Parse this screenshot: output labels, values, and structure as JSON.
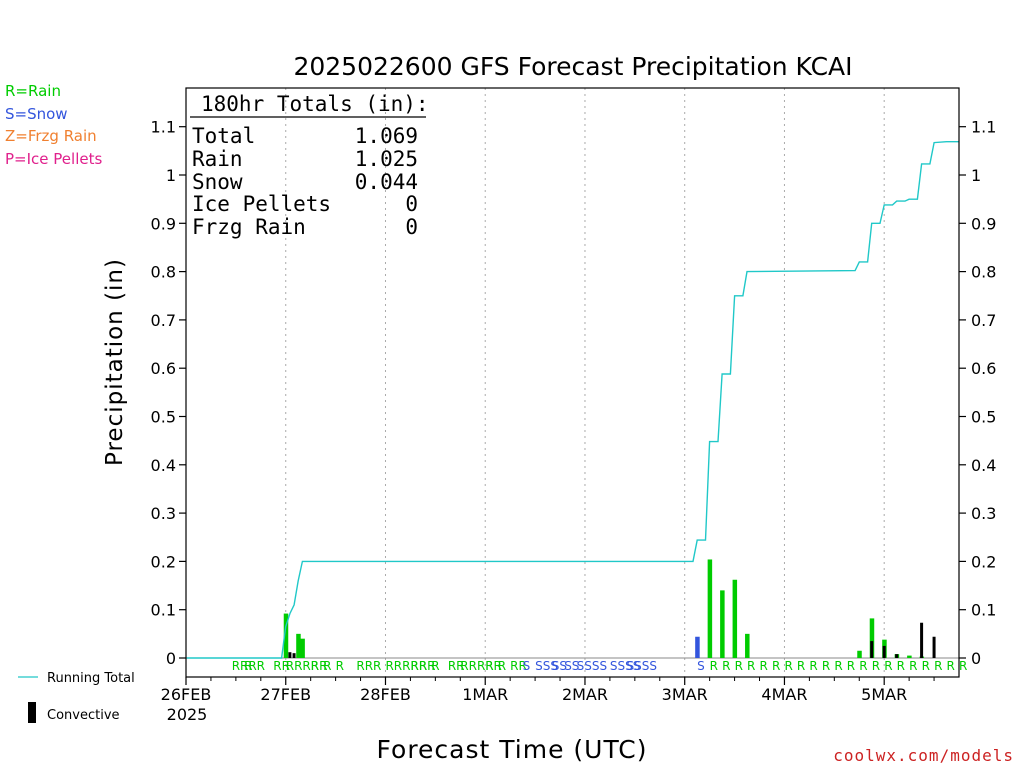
{
  "colors": {
    "rain": "#00cc00",
    "snow": "#3355dd",
    "frzg_rain": "#f08030",
    "ice_pellets": "#e0208c",
    "running_total": "#20c8c8",
    "convective": "#000000",
    "grid": "#aaaaaa",
    "credit": "#cc2222"
  },
  "type_key": {
    "rain": "R=Rain",
    "snow": "S=Snow",
    "frzg_rain": "Z=Frzg Rain",
    "ice_pellets": "P=Ice Pellets"
  },
  "totals": {
    "header": "180hr Totals (in):",
    "rows": [
      {
        "label": "Total",
        "value": "1.069"
      },
      {
        "label": "Rain",
        "value": "1.025"
      },
      {
        "label": "Snow",
        "value": "0.044"
      },
      {
        "label": "Ice Pellets",
        "value": "0"
      },
      {
        "label": "Frzg Rain",
        "value": "0"
      }
    ]
  },
  "legend": {
    "running_total": "Running Total",
    "convective": "Convective"
  },
  "credit": "coolwx.com/models",
  "chart_data": {
    "type": "bar",
    "title": "2025022600 GFS Forecast Precipitation KCAI",
    "ylabel": "Precipitation (in)",
    "xlabel": "Forecast Time (UTC)",
    "ylim": [
      0,
      1.18
    ],
    "xlim": [
      0,
      186
    ],
    "x_unit": "hours after 26FEB 2025 00UTC",
    "grid": true,
    "y_ticks": [
      0,
      0.1,
      0.2,
      0.3,
      0.4,
      0.5,
      0.6,
      0.7,
      0.8,
      0.9,
      1,
      1.1
    ],
    "y_tick_labels": [
      "0",
      "0.1",
      "0.2",
      "0.3",
      "0.4",
      "0.5",
      "0.6",
      "0.7",
      "0.8",
      "0.9",
      "1",
      "1.1"
    ],
    "x_ticks": [
      {
        "hour": 0,
        "label": "26FEB",
        "sublabel": "2025"
      },
      {
        "hour": 24,
        "label": "27FEB"
      },
      {
        "hour": 48,
        "label": "28FEB"
      },
      {
        "hour": 72,
        "label": "1MAR"
      },
      {
        "hour": 96,
        "label": "2MAR"
      },
      {
        "hour": 120,
        "label": "3MAR"
      },
      {
        "hour": 144,
        "label": "4MAR"
      },
      {
        "hour": 168,
        "label": "5MAR"
      }
    ],
    "precip_bars": [
      {
        "hour": 24,
        "value": 0.092,
        "ptype": "rain"
      },
      {
        "hour": 27,
        "value": 0.05,
        "ptype": "rain"
      },
      {
        "hour": 28,
        "value": 0.04,
        "ptype": "rain"
      },
      {
        "hour": 123,
        "value": 0.044,
        "ptype": "snow"
      },
      {
        "hour": 126,
        "value": 0.204,
        "ptype": "rain"
      },
      {
        "hour": 129,
        "value": 0.14,
        "ptype": "rain"
      },
      {
        "hour": 132,
        "value": 0.162,
        "ptype": "rain"
      },
      {
        "hour": 135,
        "value": 0.05,
        "ptype": "rain"
      },
      {
        "hour": 162,
        "value": 0.015,
        "ptype": "rain"
      },
      {
        "hour": 165,
        "value": 0.082,
        "ptype": "rain"
      },
      {
        "hour": 168,
        "value": 0.038,
        "ptype": "rain"
      },
      {
        "hour": 171,
        "value": 0.008,
        "ptype": "rain"
      },
      {
        "hour": 174,
        "value": 0.005,
        "ptype": "rain"
      },
      {
        "hour": 177,
        "value": 0.003,
        "ptype": "rain"
      }
    ],
    "convective_bars": [
      {
        "hour": 25,
        "value": 0.012
      },
      {
        "hour": 26,
        "value": 0.01
      },
      {
        "hour": 165,
        "value": 0.035
      },
      {
        "hour": 168,
        "value": 0.025
      },
      {
        "hour": 171,
        "value": 0.008
      },
      {
        "hour": 177,
        "value": 0.073
      },
      {
        "hour": 180,
        "value": 0.044
      }
    ],
    "running_total": [
      [
        0,
        0
      ],
      [
        23,
        0
      ],
      [
        24,
        0.065
      ],
      [
        25,
        0.092
      ],
      [
        26,
        0.11
      ],
      [
        27,
        0.16
      ],
      [
        28,
        0.2
      ],
      [
        122,
        0.2
      ],
      [
        123,
        0.244
      ],
      [
        125,
        0.244
      ],
      [
        126,
        0.448
      ],
      [
        128,
        0.448
      ],
      [
        129,
        0.588
      ],
      [
        131,
        0.588
      ],
      [
        132,
        0.75
      ],
      [
        134,
        0.75
      ],
      [
        135,
        0.8
      ],
      [
        161,
        0.802
      ],
      [
        162,
        0.82
      ],
      [
        164,
        0.82
      ],
      [
        165,
        0.9
      ],
      [
        167,
        0.9
      ],
      [
        168,
        0.938
      ],
      [
        170,
        0.938
      ],
      [
        171,
        0.946
      ],
      [
        173,
        0.946
      ],
      [
        174,
        0.95
      ],
      [
        176,
        0.95
      ],
      [
        177,
        1.023
      ],
      [
        179,
        1.023
      ],
      [
        180,
        1.067
      ],
      [
        183,
        1.069
      ],
      [
        186,
        1.069
      ]
    ],
    "ptype_labels": [
      {
        "hour": 11,
        "text": "RRR",
        "ptype": "rain"
      },
      {
        "hour": 14,
        "text": "R",
        "ptype": "rain"
      },
      {
        "hour": 17,
        "text": "R",
        "ptype": "rain"
      },
      {
        "hour": 21,
        "text": "RR",
        "ptype": "rain"
      },
      {
        "hour": 24,
        "text": "RRRRR",
        "ptype": "rain"
      },
      {
        "hour": 30,
        "text": "R",
        "ptype": "rain"
      },
      {
        "hour": 33,
        "text": "R",
        "ptype": "rain"
      },
      {
        "hour": 36,
        "text": "R",
        "ptype": "rain"
      },
      {
        "hour": 41,
        "text": "RR",
        "ptype": "rain"
      },
      {
        "hour": 45,
        "text": "R",
        "ptype": "rain"
      },
      {
        "hour": 48,
        "text": "RRRRR",
        "ptype": "rain"
      },
      {
        "hour": 54,
        "text": "RRR",
        "ptype": "rain"
      },
      {
        "hour": 59,
        "text": "R",
        "ptype": "rain"
      },
      {
        "hour": 63,
        "text": "RR",
        "ptype": "rain"
      },
      {
        "hour": 66,
        "text": "RRRR",
        "ptype": "rain"
      },
      {
        "hour": 72,
        "text": "RR",
        "ptype": "rain"
      },
      {
        "hour": 75,
        "text": "R",
        "ptype": "rain"
      },
      {
        "hour": 78,
        "text": "RR",
        "ptype": "rain"
      },
      {
        "hour": 81,
        "text": "S",
        "ptype": "snow"
      },
      {
        "hour": 84,
        "text": "SSS",
        "ptype": "snow"
      },
      {
        "hour": 88,
        "text": "SS",
        "ptype": "snow"
      },
      {
        "hour": 91,
        "text": "SS",
        "ptype": "snow"
      },
      {
        "hour": 94,
        "text": "SSSS",
        "ptype": "snow"
      },
      {
        "hour": 102,
        "text": "SSSS",
        "ptype": "snow"
      },
      {
        "hour": 106,
        "text": "SSSS",
        "ptype": "snow"
      },
      {
        "hour": 123,
        "text": "S",
        "ptype": "snow"
      },
      {
        "hour": 126,
        "text": "R",
        "ptype": "rain"
      },
      {
        "hour": 129,
        "text": "R",
        "ptype": "rain"
      },
      {
        "hour": 132,
        "text": "R",
        "ptype": "rain"
      },
      {
        "hour": 135,
        "text": "R",
        "ptype": "rain"
      },
      {
        "hour": 138,
        "text": "R",
        "ptype": "rain"
      },
      {
        "hour": 141,
        "text": "R",
        "ptype": "rain"
      },
      {
        "hour": 144,
        "text": "R",
        "ptype": "rain"
      },
      {
        "hour": 147,
        "text": "R",
        "ptype": "rain"
      },
      {
        "hour": 150,
        "text": "R",
        "ptype": "rain"
      },
      {
        "hour": 153,
        "text": "R",
        "ptype": "rain"
      },
      {
        "hour": 156,
        "text": "R",
        "ptype": "rain"
      },
      {
        "hour": 159,
        "text": "R",
        "ptype": "rain"
      },
      {
        "hour": 162,
        "text": "R",
        "ptype": "rain"
      },
      {
        "hour": 165,
        "text": "R",
        "ptype": "rain"
      },
      {
        "hour": 168,
        "text": "R",
        "ptype": "rain"
      },
      {
        "hour": 171,
        "text": "R",
        "ptype": "rain"
      },
      {
        "hour": 174,
        "text": "R",
        "ptype": "rain"
      },
      {
        "hour": 177,
        "text": "R",
        "ptype": "rain"
      },
      {
        "hour": 180,
        "text": "R",
        "ptype": "rain"
      },
      {
        "hour": 183,
        "text": "R",
        "ptype": "rain"
      },
      {
        "hour": 186,
        "text": "R",
        "ptype": "rain"
      }
    ]
  }
}
